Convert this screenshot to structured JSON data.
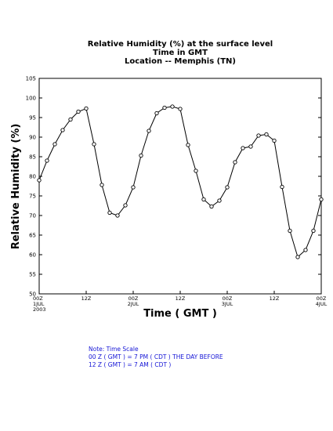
{
  "chart_data": {
    "type": "line",
    "title_lines": [
      "Relative Humidity (%) at the surface level",
      "Time in GMT",
      "Location -- Memphis (TN)"
    ],
    "xlabel": "Time ( GMT )",
    "ylabel": "Relative Humidity (%)",
    "ylim": [
      50,
      105
    ],
    "yticks": [
      50,
      55,
      60,
      65,
      70,
      75,
      80,
      85,
      90,
      95,
      100,
      105
    ],
    "xlim": [
      0,
      72
    ],
    "xticks": [
      {
        "x": 0,
        "lines": [
          "00Z",
          "1JUL",
          "2003"
        ]
      },
      {
        "x": 12,
        "lines": [
          "12Z"
        ]
      },
      {
        "x": 24,
        "lines": [
          "00Z",
          "2JUL"
        ]
      },
      {
        "x": 36,
        "lines": [
          "12Z"
        ]
      },
      {
        "x": 48,
        "lines": [
          "00Z",
          "3JUL"
        ]
      },
      {
        "x": 60,
        "lines": [
          "12Z"
        ]
      },
      {
        "x": 72,
        "lines": [
          "00Z",
          "4JUL"
        ]
      }
    ],
    "grid": false,
    "series": [
      {
        "color": "#000000",
        "marker": "open-circle",
        "x": [
          0,
          2,
          4,
          6,
          8,
          10,
          12,
          14,
          16,
          18,
          20,
          22,
          24,
          26,
          28,
          30,
          32,
          34,
          36,
          38,
          40,
          42,
          44,
          46,
          48,
          50,
          52,
          54,
          56,
          58,
          60,
          62,
          64,
          66,
          68,
          70,
          72
        ],
        "values": [
          79,
          84,
          88.2,
          91.8,
          94.5,
          96.5,
          97.3,
          88.2,
          77.8,
          70.7,
          70,
          72.6,
          77.2,
          85.3,
          91.6,
          96.1,
          97.5,
          97.8,
          97.2,
          88,
          81.4,
          74.1,
          72.3,
          73.8,
          77.2,
          83.6,
          87.2,
          87.6,
          90.4,
          90.7,
          89.1,
          77.3,
          66.1,
          59.4,
          61.2,
          66.1,
          74.1
        ]
      }
    ]
  },
  "notes": [
    "Note: Time Scale",
    "00 Z ( GMT ) = 7 PM ( CDT ) THE DAY BEFORE",
    "12 Z ( GMT ) = 7 AM ( CDT )"
  ]
}
